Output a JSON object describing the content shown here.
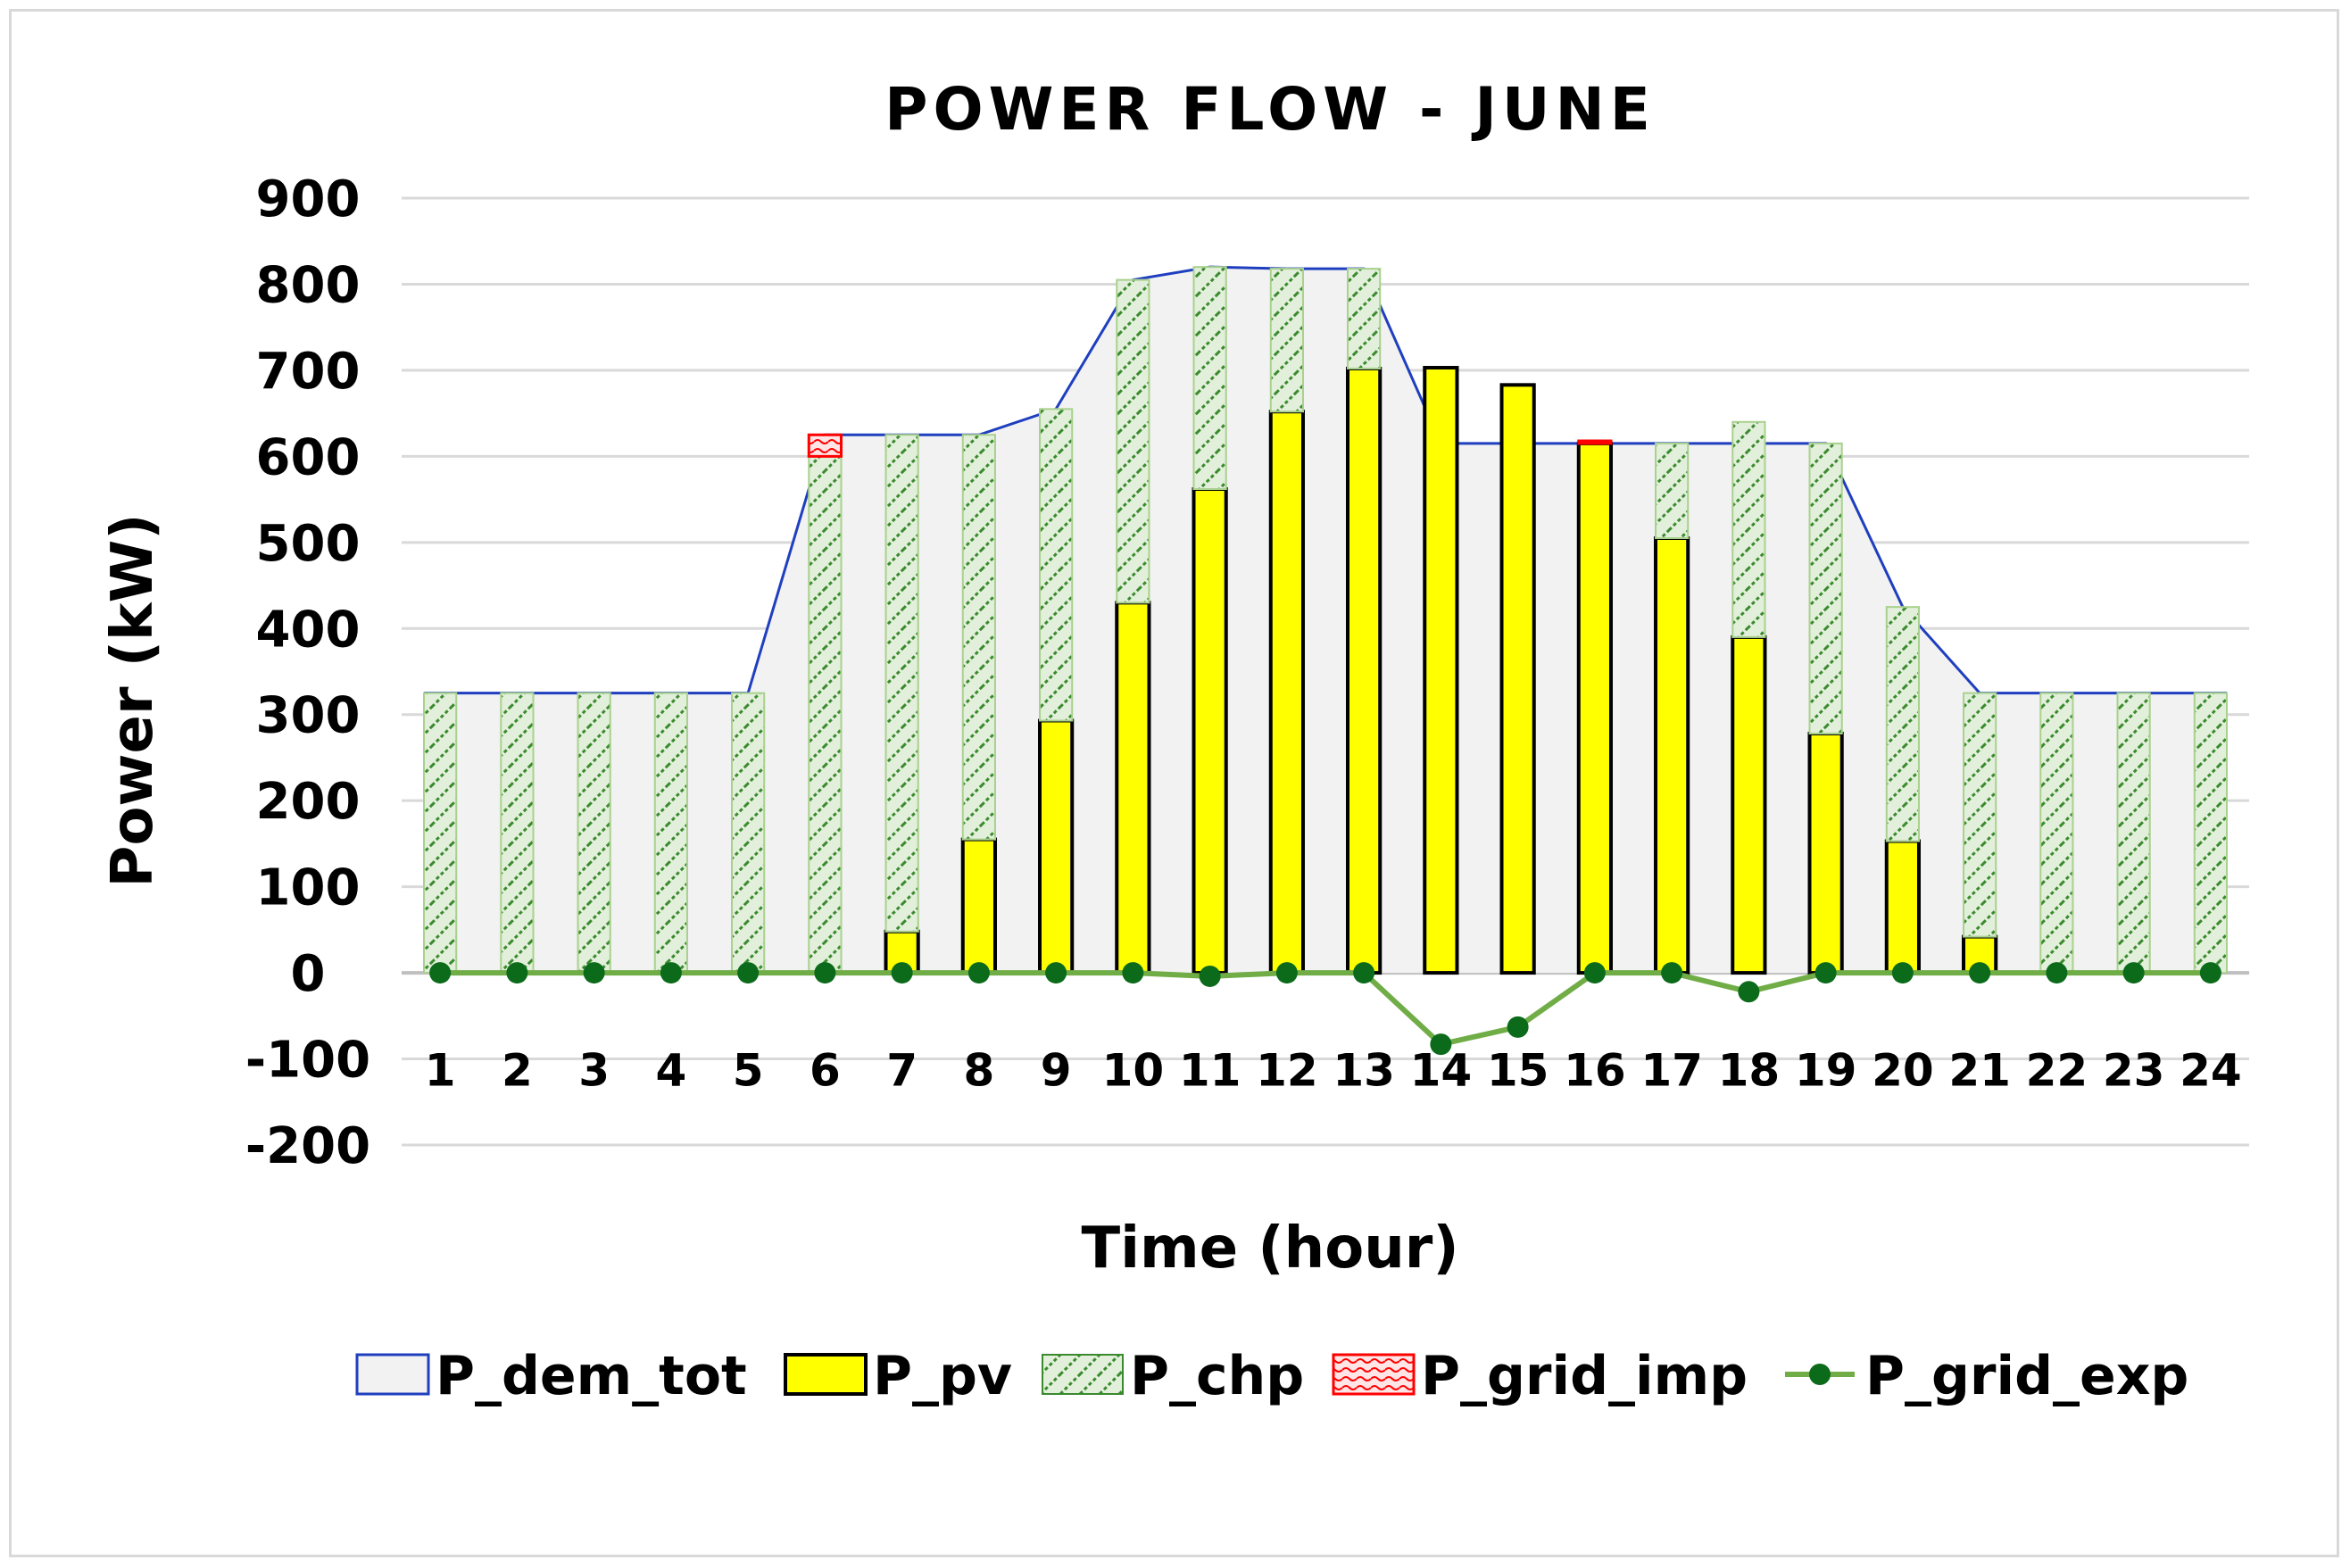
{
  "chart_data": {
    "type": "bar",
    "title": "POWER FLOW - JUNE",
    "xlabel": "Time (hour)",
    "ylabel": "Power (kW)",
    "ylim": [
      -200,
      900
    ],
    "yticks": [
      900,
      800,
      700,
      600,
      500,
      400,
      300,
      200,
      100,
      0,
      -100,
      -200
    ],
    "grid": true,
    "legend_position": "bottom",
    "categories": [
      "1",
      "2",
      "3",
      "4",
      "5",
      "6",
      "7",
      "8",
      "9",
      "10",
      "11",
      "12",
      "13",
      "14",
      "15",
      "16",
      "17",
      "18",
      "19",
      "20",
      "21",
      "22",
      "23",
      "24"
    ],
    "series": [
      {
        "name": "P_dem_tot",
        "kind": "area",
        "color": "#1f3fbf",
        "fill": "#f2f2f2",
        "values": [
          325,
          325,
          325,
          325,
          325,
          625,
          625,
          625,
          655,
          805,
          820,
          818,
          818,
          615,
          615,
          615,
          615,
          615,
          615,
          425,
          325,
          325,
          325,
          325
        ]
      },
      {
        "name": "P_pv",
        "kind": "stacked-bar",
        "color": "#ffff00",
        "values": [
          0,
          0,
          0,
          0,
          0,
          0,
          48,
          155,
          293,
          430,
          562,
          652,
          702,
          703,
          683,
          615,
          505,
          390,
          278,
          153,
          42,
          0,
          0,
          0
        ]
      },
      {
        "name": "P_chp",
        "kind": "stacked-bar",
        "color": "#e2efda",
        "values": [
          325,
          325,
          325,
          325,
          325,
          600,
          577,
          470,
          362,
          375,
          258,
          166,
          116,
          0,
          0,
          0,
          110,
          250,
          337,
          272,
          283,
          325,
          325,
          325
        ]
      },
      {
        "name": "P_grid_imp",
        "kind": "stacked-bar",
        "color": "#ff0000",
        "values": [
          0,
          0,
          0,
          0,
          0,
          25,
          0,
          0,
          0,
          0,
          0,
          0,
          0,
          0,
          0,
          3,
          0,
          0,
          0,
          0,
          0,
          0,
          0,
          0
        ]
      },
      {
        "name": "P_grid_exp",
        "kind": "line-markers",
        "color": "#70ad47",
        "values": [
          0,
          0,
          0,
          0,
          0,
          0,
          0,
          0,
          0,
          0,
          -4,
          0,
          0,
          -83,
          -63,
          0,
          0,
          -22,
          0,
          0,
          0,
          0,
          0,
          0
        ]
      }
    ]
  }
}
